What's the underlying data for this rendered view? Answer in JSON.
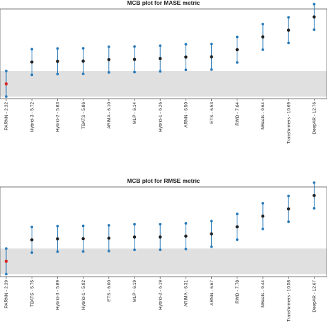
{
  "chart_data": [
    {
      "type": "scatter",
      "title": "MCB plot for MASE metric",
      "categories": [
        "PARNN - 2.32",
        "Hybrid-3 - 5.72",
        "Hybrid-2 - 5.83",
        "TBATS - 5.86",
        "ARIMA - 6.10",
        "MLP - 6.14",
        "Hybrid-1 - 6.26",
        "ARNN - 6.50",
        "ETS - 6.53",
        "RWD - 7.64",
        "NBeats - 9.64",
        "Transformers - 10.69",
        "DeepAR - 12.76"
      ],
      "values": [
        2.32,
        5.72,
        5.83,
        5.86,
        6.1,
        6.14,
        6.26,
        6.5,
        6.53,
        7.64,
        9.64,
        10.69,
        12.76
      ],
      "interval_half_width": 2.0,
      "ylim": [
        0,
        14
      ],
      "shaded_band": [
        0.32,
        4.32
      ],
      "highlight_color": "#d62728",
      "marker_color": "#222222",
      "interval_color": "#2a7ab8",
      "band_color": "#e0e0e0"
    },
    {
      "type": "scatter",
      "title": "MCB plot for RMSE metric",
      "categories": [
        "PARNN - 2.39",
        "TBATS - 5.75",
        "Hybrid-3 - 5.89",
        "Hybrid-1 - 5.92",
        "ETS - 6.00",
        "MLP - 6.19",
        "Hybrid-2 - 6.19",
        "ARIMA - 6.31",
        "ARNN - 6.67",
        "RWD - 7.78",
        "NBeats - 9.44",
        "Transformers - 10.58",
        "DeepAR - 12.67"
      ],
      "values": [
        2.39,
        5.75,
        5.89,
        5.92,
        6.0,
        6.19,
        6.19,
        6.31,
        6.67,
        7.78,
        9.44,
        10.58,
        12.67
      ],
      "interval_half_width": 2.0,
      "ylim": [
        0,
        14
      ],
      "shaded_band": [
        0.39,
        4.39
      ],
      "highlight_color": "#d62728",
      "marker_color": "#222222",
      "interval_color": "#2a7ab8",
      "band_color": "#e0e0e0"
    }
  ]
}
